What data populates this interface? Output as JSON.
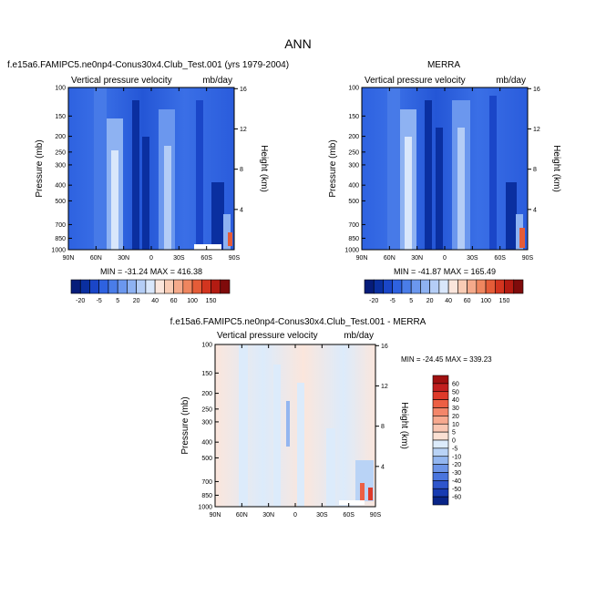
{
  "figure": {
    "title": "ANN"
  },
  "chart_data": [
    {
      "type": "heatmap",
      "title": "f.e15a6.FAMIPC5.ne0np4-Conus30x4.Club_Test.001 (yrs 1979-2004)",
      "left_string": "Vertical pressure velocity",
      "right_string": "mb/day",
      "xlabel": "",
      "ylabel": "Pressure (mb)",
      "y2label": "Height (km)",
      "x_ticks": [
        "90N",
        "60N",
        "30N",
        "0",
        "30S",
        "60S",
        "90S"
      ],
      "y_ticks": [
        "100",
        "150",
        "200",
        "250",
        "300",
        "400",
        "500",
        "700",
        "850",
        "1000"
      ],
      "y2_ticks": [
        "16",
        "12",
        "8",
        "4"
      ],
      "ylim": [
        1000,
        100
      ],
      "min": "-31.24",
      "max": "416.38",
      "stats": "MIN = -31.24   MAX = 416.38",
      "colorbar": {
        "orientation": "horizontal",
        "labels": [
          "-20",
          "-5",
          "5",
          "20",
          "40",
          "60",
          "100",
          "150"
        ],
        "colors": [
          "#061c7a",
          "#0a2fa0",
          "#1a46c8",
          "#2e62e0",
          "#4a7de8",
          "#6b97ee",
          "#8eb2f2",
          "#b4cdf6",
          "#d9e7fb",
          "#fbe6dc",
          "#f9ccb5",
          "#f5aa8b",
          "#ef865f",
          "#e55c38",
          "#d3351f",
          "#b31b12",
          "#7f0b0b"
        ]
      }
    },
    {
      "type": "heatmap",
      "title": "MERRA",
      "left_string": "Vertical pressure velocity",
      "right_string": "mb/day",
      "xlabel": "",
      "ylabel": "Pressure (mb)",
      "y2label": "Height (km)",
      "x_ticks": [
        "90N",
        "60N",
        "30N",
        "0",
        "30S",
        "60S",
        "90S"
      ],
      "y_ticks": [
        "100",
        "150",
        "200",
        "250",
        "300",
        "400",
        "500",
        "700",
        "850",
        "1000"
      ],
      "y2_ticks": [
        "16",
        "12",
        "8",
        "4"
      ],
      "ylim": [
        1000,
        100
      ],
      "min": "-41.87",
      "max": "165.49",
      "stats": "MIN = -41.87   MAX = 165.49",
      "colorbar": {
        "orientation": "horizontal",
        "labels": [
          "-20",
          "-5",
          "5",
          "20",
          "40",
          "60",
          "100",
          "150"
        ],
        "colors": [
          "#061c7a",
          "#0a2fa0",
          "#1a46c8",
          "#2e62e0",
          "#4a7de8",
          "#6b97ee",
          "#8eb2f2",
          "#b4cdf6",
          "#d9e7fb",
          "#fbe6dc",
          "#f9ccb5",
          "#f5aa8b",
          "#ef865f",
          "#e55c38",
          "#d3351f",
          "#b31b12",
          "#7f0b0b"
        ]
      }
    },
    {
      "type": "heatmap",
      "title": "f.e15a6.FAMIPC5.ne0np4-Conus30x4.Club_Test.001 - MERRA",
      "left_string": "Vertical pressure velocity",
      "right_string": "mb/day",
      "xlabel": "",
      "ylabel": "Pressure (mb)",
      "y2label": "Height (km)",
      "x_ticks": [
        "90N",
        "60N",
        "30N",
        "0",
        "30S",
        "60S",
        "90S"
      ],
      "y_ticks": [
        "100",
        "150",
        "200",
        "250",
        "300",
        "400",
        "500",
        "700",
        "850",
        "1000"
      ],
      "y2_ticks": [
        "16",
        "12",
        "8",
        "4"
      ],
      "ylim": [
        1000,
        100
      ],
      "min": "-24.45",
      "max": "339.23",
      "stats": "MIN = -24.45   MAX = 339.23",
      "colorbar": {
        "orientation": "vertical",
        "labels": [
          "60",
          "50",
          "40",
          "30",
          "20",
          "10",
          "5",
          "0",
          "-5",
          "-10",
          "-20",
          "-30",
          "-40",
          "-50",
          "-60"
        ],
        "colors": [
          "#a01010",
          "#c21f1f",
          "#de3a2a",
          "#ec5f44",
          "#f3866a",
          "#f7a98f",
          "#f9c6b2",
          "#fbe0d3",
          "#dcebfb",
          "#b9d3f6",
          "#93b6f0",
          "#6d95e8",
          "#4a75de",
          "#2e55cc",
          "#173bb2",
          "#082488"
        ]
      }
    }
  ]
}
